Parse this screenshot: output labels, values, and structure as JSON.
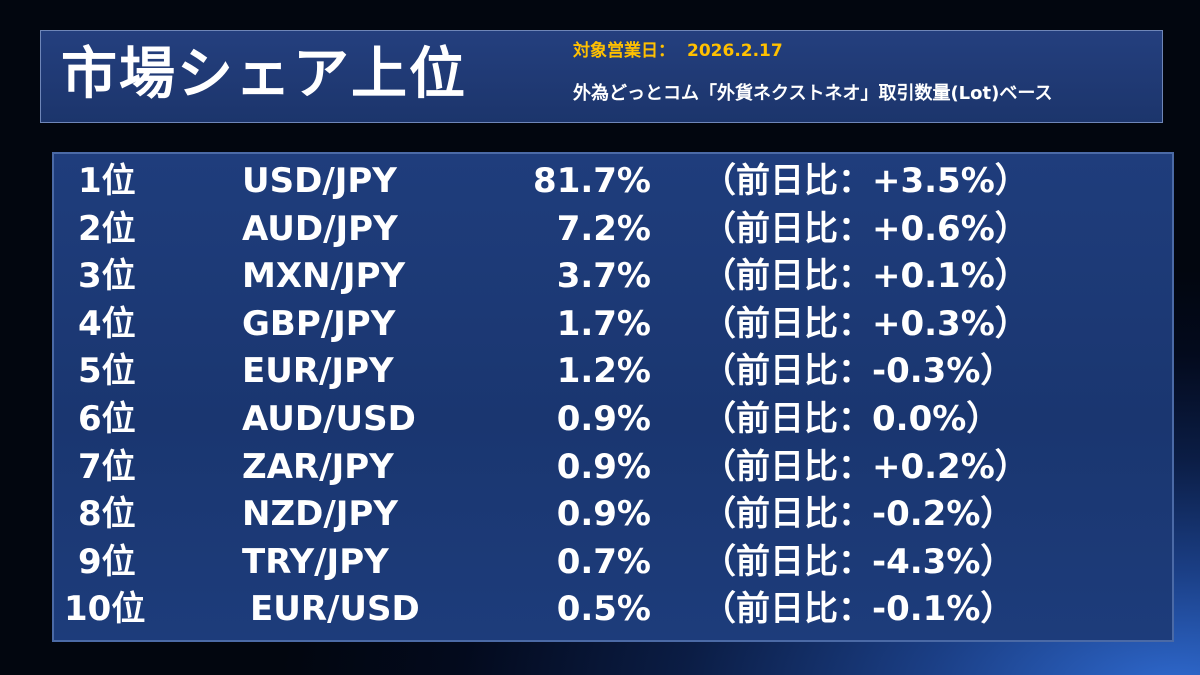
{
  "header": {
    "title": "市場シェア上位",
    "date_label": "対象営業日：",
    "date_value": "2026.2.17",
    "basis": "外為どっとコム「外貨ネクストネオ」取引数量(Lot)ベース"
  },
  "ranking": [
    {
      "rank": "1位",
      "pair": "USD/JPY",
      "share": "81.7%",
      "change": "（前日比：+3.5%）"
    },
    {
      "rank": "2位",
      "pair": "AUD/JPY",
      "share": "7.2%",
      "change": "（前日比：+0.6%）"
    },
    {
      "rank": "3位",
      "pair": "MXN/JPY",
      "share": "3.7%",
      "change": "（前日比：+0.1%）"
    },
    {
      "rank": "4位",
      "pair": "GBP/JPY",
      "share": "1.7%",
      "change": "（前日比：+0.3%）"
    },
    {
      "rank": "5位",
      "pair": "EUR/JPY",
      "share": "1.2%",
      "change": "（前日比：-0.3%）"
    },
    {
      "rank": "6位",
      "pair": "AUD/USD",
      "share": "0.9%",
      "change": "（前日比：0.0%）"
    },
    {
      "rank": "7位",
      "pair": "ZAR/JPY",
      "share": "0.9%",
      "change": "（前日比：+0.2%）"
    },
    {
      "rank": "8位",
      "pair": "NZD/JPY",
      "share": "0.9%",
      "change": "（前日比：-0.2%）"
    },
    {
      "rank": "9位",
      "pair": "TRY/JPY",
      "share": "0.7%",
      "change": "（前日比：-4.3%）"
    },
    {
      "rank": "10位",
      "pair": "EUR/USD",
      "share": "0.5%",
      "change": "（前日比：-0.1%）"
    }
  ],
  "colors": {
    "accent": "#ffc000",
    "panel": "#1c386f",
    "text": "#ffffff"
  }
}
